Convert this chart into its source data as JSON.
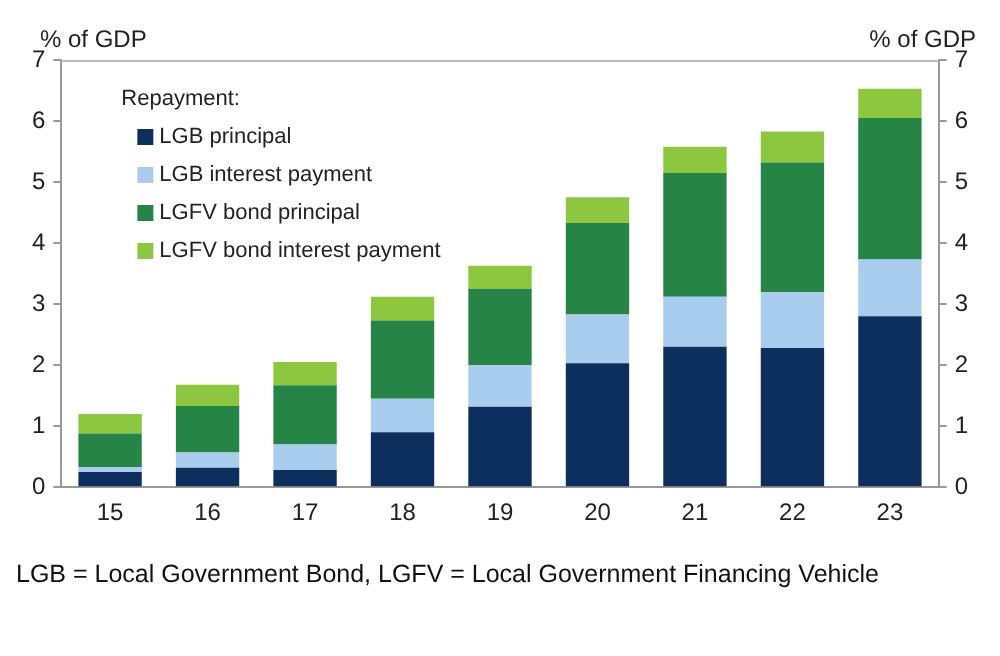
{
  "chart_data": {
    "type": "bar",
    "stacked": true,
    "categories": [
      "15",
      "16",
      "17",
      "18",
      "19",
      "20",
      "21",
      "22",
      "23"
    ],
    "ylabel": "% of GDP",
    "y2label": "% of GDP",
    "legend_title": "Repayment:",
    "series": [
      {
        "name": "LGB principal",
        "color": "#0d2f5e",
        "values": [
          0.25,
          0.32,
          0.28,
          0.9,
          1.32,
          2.03,
          2.3,
          2.28,
          2.8
        ]
      },
      {
        "name": "LGB interest payment",
        "color": "#a9cdec",
        "values": [
          0.08,
          0.25,
          0.42,
          0.55,
          0.68,
          0.8,
          0.82,
          0.92,
          0.93
        ]
      },
      {
        "name": "LGFV bond principal",
        "color": "#258446",
        "values": [
          0.55,
          0.76,
          0.97,
          1.28,
          1.25,
          1.5,
          2.03,
          2.12,
          2.32
        ]
      },
      {
        "name": "LGFV bond interest payment",
        "color": "#8dc63f",
        "values": [
          0.32,
          0.35,
          0.38,
          0.39,
          0.38,
          0.42,
          0.43,
          0.51,
          0.48
        ]
      }
    ],
    "ylim": [
      0,
      7
    ],
    "yticks": [
      0,
      1,
      2,
      3,
      4,
      5,
      6,
      7
    ],
    "y2lim": [
      0,
      7
    ],
    "y2ticks": [
      0,
      1,
      2,
      3,
      4,
      5,
      6,
      7
    ],
    "grid": false,
    "legend": "top left",
    "annotations": [
      "LGB = Local Government Bond, LGFV = Local Government Financing Vehicle"
    ]
  }
}
